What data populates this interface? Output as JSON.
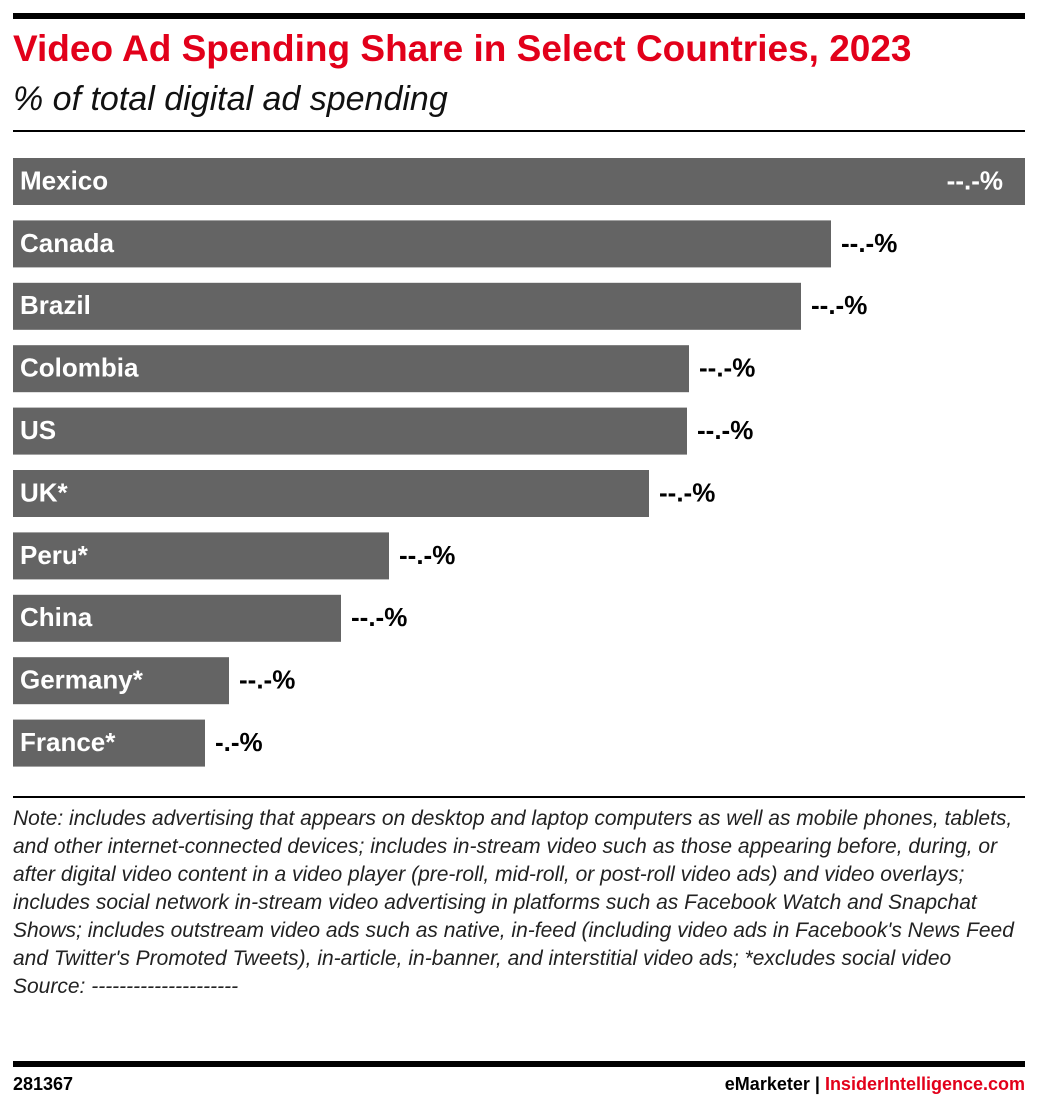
{
  "chart_data": {
    "type": "bar",
    "orientation": "horizontal",
    "title": "Video Ad Spending Share in Select Countries, 2023",
    "subtitle": "% of total digital ad spending",
    "categories": [
      "Mexico",
      "Canada",
      "Brazil",
      "Colombia",
      "US",
      "UK*",
      "Peru*",
      "China",
      "Germany*",
      "France*"
    ],
    "values": [
      50.6,
      40.9,
      39.4,
      33.8,
      33.7,
      31.8,
      18.8,
      16.4,
      10.8,
      9.6
    ],
    "value_labels": [
      "--.-%",
      "--.-%",
      "--.-%",
      "--.-%",
      "--.-%",
      "--.-%",
      "--.-%",
      "--.-%",
      "--.-%",
      "-.-%"
    ],
    "color": "#646464",
    "xlim": [
      0,
      50.6
    ],
    "note": "Note: includes advertising that appears on desktop and laptop computers as well as mobile phones, tablets, and other internet-connected devices; includes in-stream video such as those appearing before, during, or after digital video content in a video player (pre-roll, mid-roll, or post-roll video ads) and video overlays; includes social network in-stream video advertising in platforms such as Facebook Watch and Snapchat Shows; includes outstream video ads such as native, in-feed (including video ads in Facebook's News Feed and Twitter's Promoted Tweets), in-article, in-banner, and interstitial video ads; *excludes social video",
    "source": "Source: ---------------------",
    "chart_id": "281367",
    "brand": "eMarketer",
    "separator": "|",
    "brand_site": "InsiderIntelligence.com"
  }
}
